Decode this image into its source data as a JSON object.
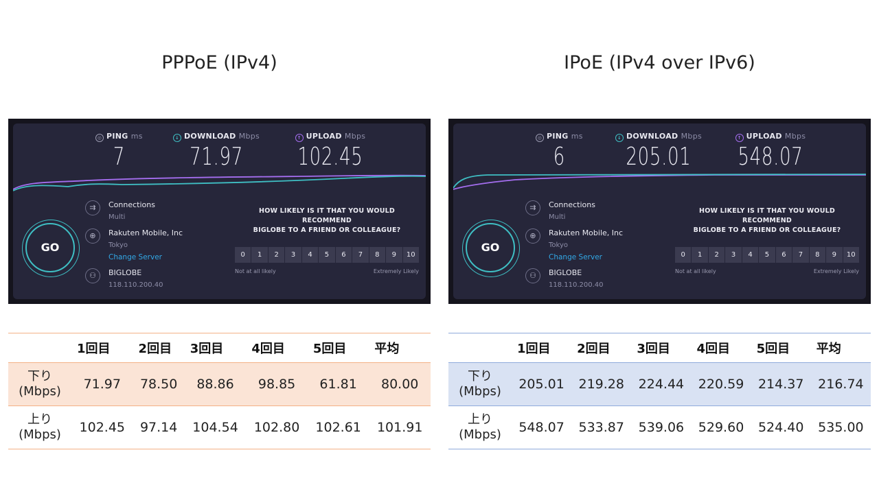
{
  "colors": {
    "outer_frame": "#15141d",
    "panel_bg": "#26263a",
    "accent_cyan": "#3fbfc4",
    "accent_purple": "#a56ef0",
    "link_blue": "#32a8e6",
    "table_orange_border": "#f3b085",
    "table_orange_fill": "#fbe4d6",
    "table_blue_border": "#8ea9db",
    "table_blue_fill": "#d9e2f3"
  },
  "panels": [
    {
      "title": "PPPoE (IPv4)",
      "speedtest": {
        "ping": {
          "label": "PING",
          "unit": "ms",
          "value": "7",
          "icon": "ping-icon"
        },
        "download": {
          "label": "DOWNLOAD",
          "unit": "Mbps",
          "value": "71.97",
          "icon": "download-icon"
        },
        "upload": {
          "label": "UPLOAD",
          "unit": "Mbps",
          "value": "102.45",
          "icon": "upload-icon"
        },
        "go_label": "GO",
        "connections": {
          "title": "Connections",
          "value": "Multi"
        },
        "server": {
          "name": "Rakuten Mobile, Inc",
          "location": "Tokyo",
          "change_link": "Change Server"
        },
        "isp": {
          "name": "BIGLOBE",
          "ip": "118.110.200.40"
        },
        "survey": {
          "question_line1": "HOW LIKELY IS IT THAT YOU WOULD RECOMMEND",
          "question_line2": "BIGLOBE TO A FRIEND OR COLLEAGUE?",
          "scale": [
            "0",
            "1",
            "2",
            "3",
            "4",
            "5",
            "6",
            "7",
            "8",
            "9",
            "10"
          ],
          "low_label": "Not at all likely",
          "high_label": "Extremely Likely"
        }
      },
      "table": {
        "headers": [
          "",
          "1回目",
          "2回目",
          "3回目",
          "4回目",
          "5回目",
          "平均"
        ],
        "rows": [
          {
            "label_line1": "下り",
            "label_line2": "(Mbps)",
            "values": [
              "71.97",
              "78.50",
              "88.86",
              "98.85",
              "61.81",
              "80.00"
            ]
          },
          {
            "label_line1": "上り",
            "label_line2": "(Mbps)",
            "values": [
              "102.45",
              "97.14",
              "104.54",
              "102.80",
              "102.61",
              "101.91"
            ]
          }
        ]
      }
    },
    {
      "title": "IPoE (IPv4 over IPv6)",
      "speedtest": {
        "ping": {
          "label": "PING",
          "unit": "ms",
          "value": "6",
          "icon": "ping-icon"
        },
        "download": {
          "label": "DOWNLOAD",
          "unit": "Mbps",
          "value": "205.01",
          "icon": "download-icon"
        },
        "upload": {
          "label": "UPLOAD",
          "unit": "Mbps",
          "value": "548.07",
          "icon": "upload-icon"
        },
        "go_label": "GO",
        "connections": {
          "title": "Connections",
          "value": "Multi"
        },
        "server": {
          "name": "Rakuten Mobile, Inc",
          "location": "Tokyo",
          "change_link": "Change Server"
        },
        "isp": {
          "name": "BIGLOBE",
          "ip": "118.110.200.40"
        },
        "survey": {
          "question_line1": "HOW LIKELY IS IT THAT YOU WOULD RECOMMEND",
          "question_line2": "BIGLOBE TO A FRIEND OR COLLEAGUE?",
          "scale": [
            "0",
            "1",
            "2",
            "3",
            "4",
            "5",
            "6",
            "7",
            "8",
            "9",
            "10"
          ],
          "low_label": "Not at all likely",
          "high_label": "Extremely Likely"
        }
      },
      "table": {
        "headers": [
          "",
          "1回目",
          "2回目",
          "3回目",
          "4回目",
          "5回目",
          "平均"
        ],
        "rows": [
          {
            "label_line1": "下り",
            "label_line2": "(Mbps)",
            "values": [
              "205.01",
              "219.28",
              "224.44",
              "220.59",
              "214.37",
              "216.74"
            ]
          },
          {
            "label_line1": "上り",
            "label_line2": "(Mbps)",
            "values": [
              "548.07",
              "533.87",
              "539.06",
              "529.60",
              "524.40",
              "535.00"
            ]
          }
        ]
      }
    }
  ]
}
